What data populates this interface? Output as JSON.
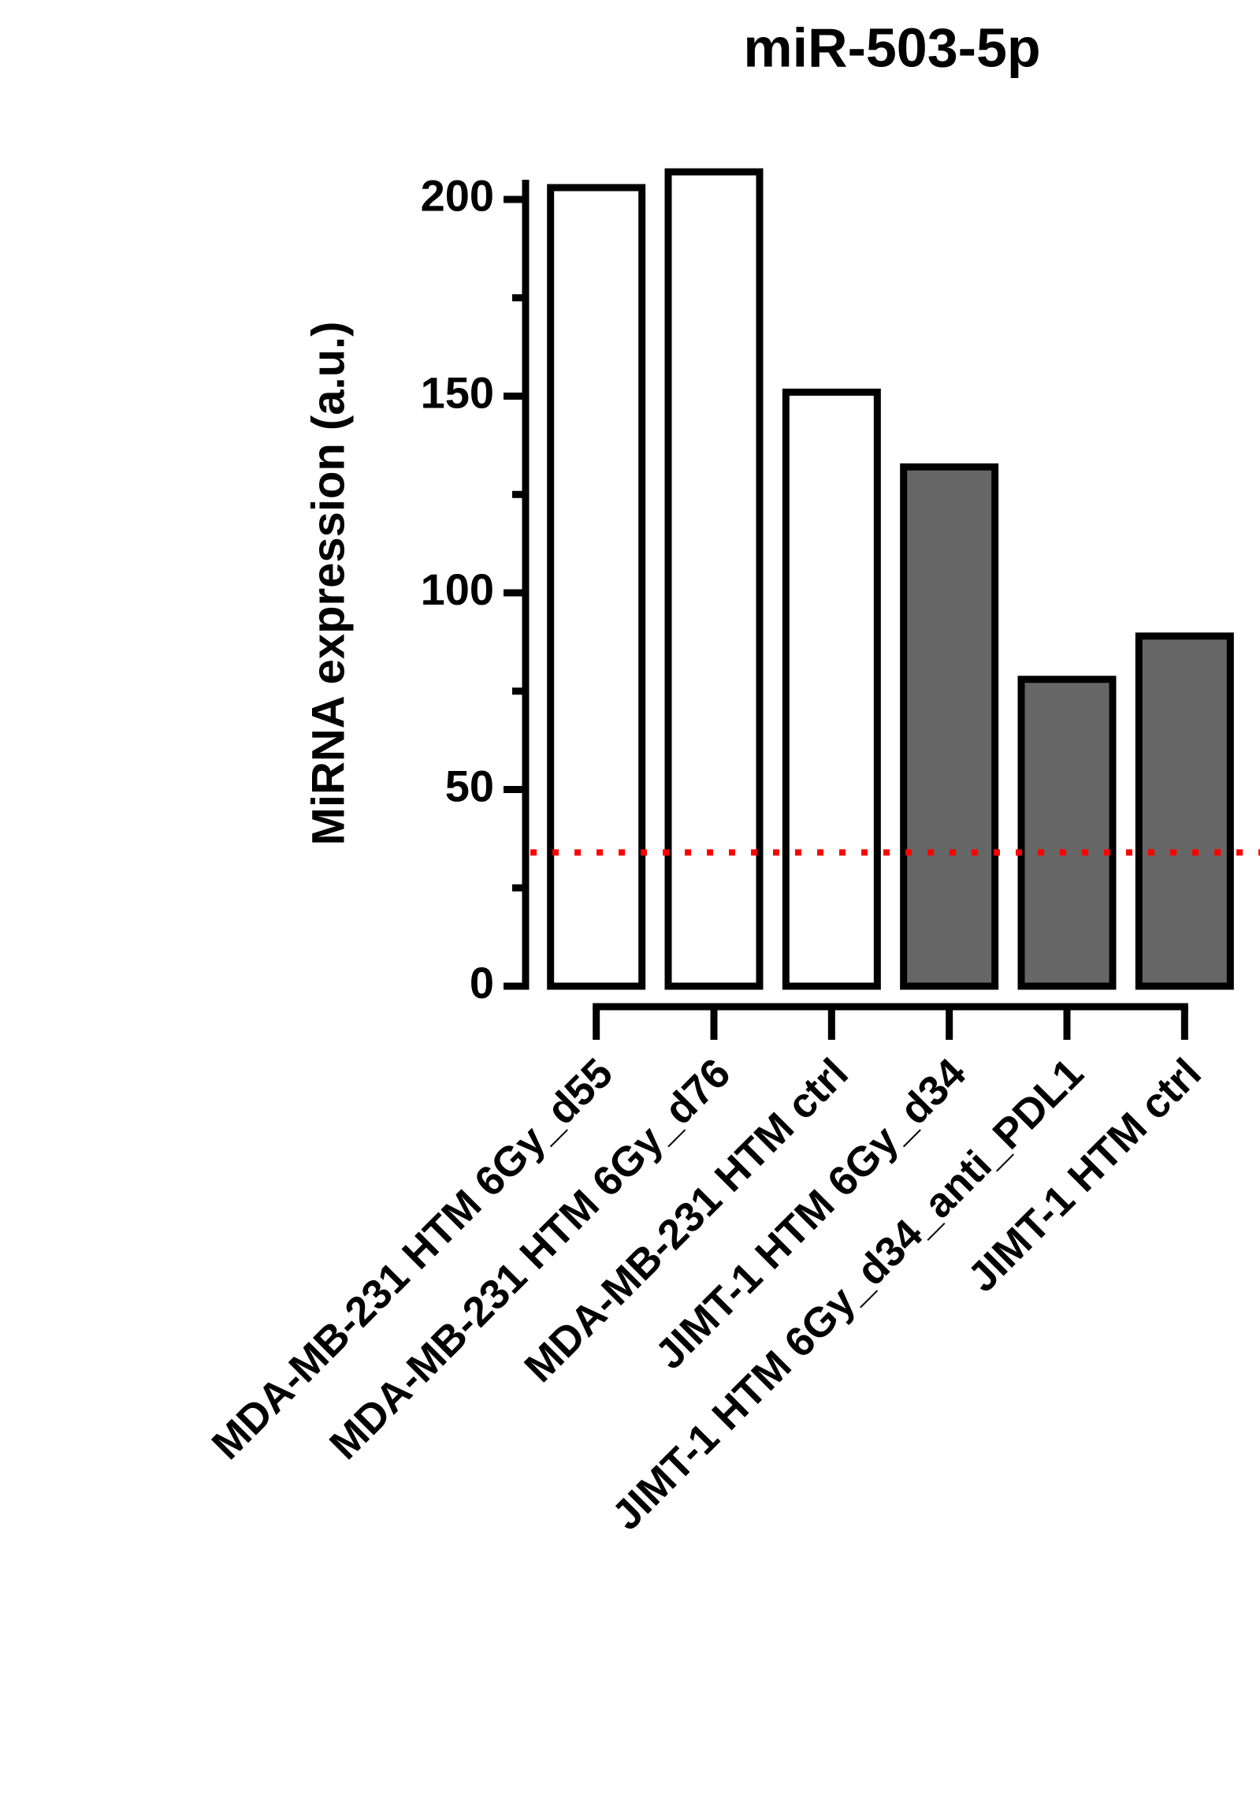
{
  "chart_data": {
    "type": "bar",
    "title": "miR-503-5p",
    "y_label": "MiRNA expression (a.u.)",
    "categories": [
      "MDA-MB-231 HTM 6Gy_d55",
      "MDA-MB-231 HTM 6Gy_d76",
      "MDA-MB-231 HTM ctrl",
      "JIMT-1 HTM 6Gy_d34",
      "JIMT-1 HTM 6Gy_d34_anti_PDL1",
      "JIMT-1 HTM ctrl"
    ],
    "values": [
      203,
      207,
      151,
      132,
      78,
      89
    ],
    "colors": [
      "#ffffff",
      "#ffffff",
      "#ffffff",
      "#666666",
      "#666666",
      "#666666"
    ],
    "edge_color": "#000000",
    "ylim": [
      0,
      205
    ],
    "yticks": [
      0,
      50,
      100,
      150,
      200
    ],
    "minor_yticks": [
      25,
      75,
      125,
      175
    ],
    "reference_line": {
      "value": 34,
      "color": "#ff0000",
      "style": "dotted"
    }
  }
}
